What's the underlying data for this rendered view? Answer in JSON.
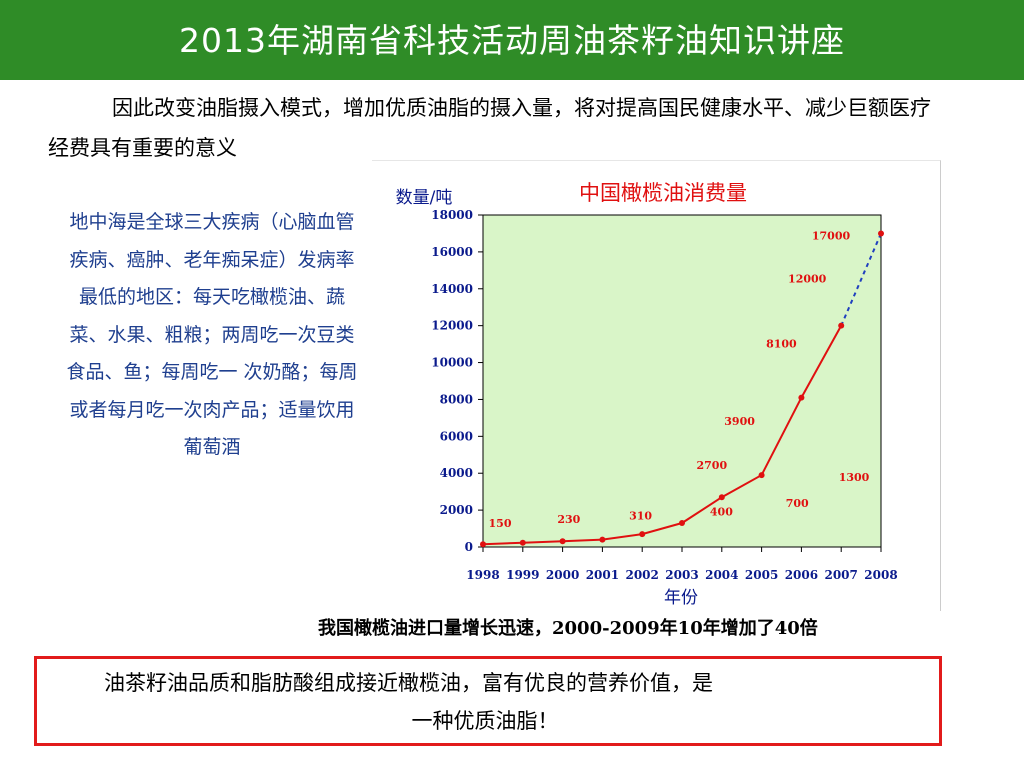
{
  "header": {
    "title": "2013年湖南省科技活动周油茶籽油知识讲座"
  },
  "intro": {
    "text": "因此改变油脂摄入模式，增加优质油脂的摄入量，将对提高国民健康水平、减少巨额医疗经费具有重要的意义"
  },
  "sidebar": {
    "text": "地中海是全球三大疾病（心脑血管疾病、癌肿、老年痴呆症）发病率最低的地区：每天吃橄榄油、蔬菜、水果、粗粮；两周吃一次豆类食品、鱼；每周吃一 次奶酪；每周或者每月吃一次肉产品；适量饮用葡萄酒"
  },
  "chart_data": {
    "type": "line",
    "title": "中国橄榄油消费量",
    "ylabel": "数量/吨",
    "xlabel": "年份",
    "categories": [
      "1998",
      "1999",
      "2000",
      "2001",
      "2002",
      "2003",
      "2004",
      "2005",
      "2006",
      "2007",
      "2008"
    ],
    "values": [
      150,
      230,
      310,
      400,
      700,
      1300,
      2700,
      3900,
      8100,
      12000,
      17000
    ],
    "data_labels": [
      "150",
      "230",
      "310",
      "400",
      "700",
      "1300",
      "2700",
      "3900",
      "8100",
      "12000",
      "17000"
    ],
    "yticks": [
      "0",
      "2000",
      "4000",
      "6000",
      "8000",
      "10000",
      "12000",
      "14000",
      "16000",
      "18000"
    ],
    "ylim": [
      0,
      18000
    ],
    "projected_last_segment": true,
    "grid": false,
    "colors": {
      "line": "#e01010",
      "projection": "#1f3fbf",
      "plot_bg": "#d9f5c8",
      "labels": "#e01010",
      "axis_text": "#0a1a8c"
    }
  },
  "caption": {
    "text": "我国橄榄油进口量增长迅速，2000-2009年10年增加了40倍"
  },
  "bottom": {
    "line1": "油茶籽油品质和脂肪酸组成接近橄榄油，富有优良的营养价值，是",
    "line2": "一种优质油脂！"
  }
}
